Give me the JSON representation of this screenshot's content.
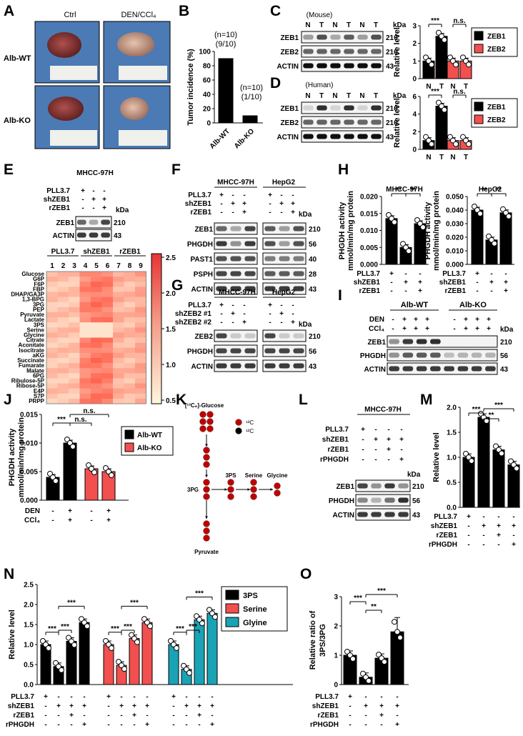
{
  "panels": {
    "A": "A",
    "B": "B",
    "C": "C",
    "D": "D",
    "E": "E",
    "F": "F",
    "G": "G",
    "H": "H",
    "I": "I",
    "J": "J",
    "K": "K",
    "L": "L",
    "M": "M",
    "N": "N",
    "O": "O"
  },
  "common": {
    "kda": "kDa",
    "zeb1": "ZEB1",
    "zeb2": "ZEB2",
    "actin": "ACTIN",
    "phgdh": "PHGDH",
    "past1": "PAST1",
    "psph": "PSPH",
    "m210": "210",
    "m56": "56",
    "m43": "43",
    "m40": "40",
    "m28": "28",
    "pll37": "PLL3.7",
    "shzeb1": "shZEB1",
    "rzeb1": "rZEB1",
    "rphgdh": "rPHGDH",
    "shzeb2_1": "shZEB2 #1",
    "shzeb2_2": "shZEB2 #2",
    "den": "DEN",
    "ccl4": "CCl₄",
    "plus": "+",
    "minus": "-",
    "N": "N",
    "T": "T",
    "relative_level": "Relative level",
    "ns": "n.s.",
    "p3": "***",
    "p2": "**",
    "mhcc": "MHCC-97H",
    "hepg2": "HepG2",
    "alb_wt": "Alb-WT",
    "alb_ko": "Alb-KO"
  },
  "A": {
    "col_ctrl": "Ctrl",
    "col_den": "DEN/CCl₄",
    "row_wt": "Alb-WT",
    "row_ko": "Alb-KO"
  },
  "B": {
    "ylabel": "Tumor incidence (%)",
    "ann_wt_1": "(n=10)",
    "ann_wt_2": "(9/10)",
    "ann_ko_1": "(n=10)",
    "ann_ko_2": "(1/10)"
  },
  "C": {
    "title": "(Mouse)"
  },
  "D": {
    "title": "(Human)"
  },
  "E": {
    "cell": "MHCC-97H",
    "grp_pll": "PLL3.7",
    "grp_sh": "shZEB1",
    "grp_r": "rZEB1",
    "lanes": [
      "1",
      "2",
      "3",
      "4",
      "5",
      "6",
      "7",
      "8",
      "9"
    ],
    "metabolites": [
      "Glucose",
      "G6P",
      "F6P",
      "FBP",
      "DHAP/GA3P",
      "1,3-BPG",
      "3PG",
      "PEP",
      "Pyruvate",
      "Lactate",
      "3PS",
      "Serine",
      "Glycine",
      "Citrate",
      "Aconitate",
      "Isocitrate",
      "aKG",
      "Succinate",
      "Fumarate",
      "Malate",
      "6PG",
      "Ribulose-5P",
      "Ribose-5P",
      "E4P",
      "S7P",
      "PRPP"
    ],
    "scale": [
      "2.5",
      "2.0",
      "1.5",
      "1.0",
      "0.5"
    ]
  },
  "H": {
    "ylabel_1": "PHGDH activity",
    "ylabel_2": "mmol/min/mg protein"
  },
  "J": {
    "ylabel_1": "PHGDH activity",
    "ylabel_2": "mmol/min/mg protein"
  },
  "K": {
    "glucose": "[¹³C₆]-Glucose",
    "c13": "¹³C",
    "c12": "¹²C",
    "g3pg": "3PG",
    "g3ps": "3PS",
    "serine": "Serine",
    "glycine": "Glycine",
    "pyruvate": "Pyruvate"
  },
  "O": {
    "ylabel_1": "Relative ratio of",
    "ylabel_2": "3PS/3PG"
  },
  "colors": {
    "black": "#000000",
    "red": "#f24f4f",
    "teal": "#1aa3b5",
    "dot": "#c00000"
  },
  "chart_data": [
    {
      "panel": "B",
      "type": "bar",
      "categories": [
        "Alb-WT",
        "Alb-KO"
      ],
      "values": [
        90,
        10
      ],
      "ylabel": "Tumor incidence (%)",
      "ylim": [
        0,
        100
      ],
      "yticks": [
        0,
        20,
        40,
        60,
        80,
        100
      ]
    },
    {
      "panel": "C",
      "type": "bar",
      "categories": [
        "N",
        "T"
      ],
      "series": [
        {
          "name": "ZEB1",
          "values": [
            1.0,
            2.4
          ]
        },
        {
          "name": "ZEB2",
          "values": [
            1.0,
            1.0
          ]
        }
      ],
      "ylabel": "Relative level",
      "ylim": [
        0,
        3
      ],
      "yticks": [
        0,
        1,
        2,
        3
      ]
    },
    {
      "panel": "D",
      "type": "bar",
      "categories": [
        "N",
        "T"
      ],
      "series": [
        {
          "name": "ZEB1",
          "values": [
            1.0,
            4.9
          ]
        },
        {
          "name": "ZEB2",
          "values": [
            1.0,
            1.0
          ]
        }
      ],
      "ylabel": "Relative level",
      "ylim": [
        0,
        6
      ],
      "yticks": [
        0,
        2,
        4,
        6
      ]
    },
    {
      "panel": "H",
      "title": "MHCC-97H",
      "type": "bar",
      "values": [
        0.0135,
        0.005,
        0.012
      ],
      "ylim": [
        0,
        0.02
      ],
      "yticks": [
        "0.000",
        "0.005",
        "0.010",
        "0.015",
        "0.020"
      ]
    },
    {
      "panel": "H",
      "title": "HepG2",
      "type": "bar",
      "values": [
        0.04,
        0.018,
        0.038
      ],
      "ylim": [
        0,
        0.05
      ],
      "yticks": [
        "0.000",
        "0.010",
        "0.020",
        "0.030",
        "0.040",
        "0.050"
      ]
    },
    {
      "panel": "J",
      "type": "bar",
      "series": [
        {
          "name": "Alb-WT",
          "values": [
            0.004,
            0.01
          ]
        },
        {
          "name": "Alb-KO",
          "values": [
            0.0055,
            0.005
          ]
        }
      ],
      "ylim": [
        0,
        0.015
      ],
      "yticks": [
        "0.000",
        "0.005",
        "0.010",
        "0.015"
      ]
    },
    {
      "panel": "M",
      "type": "bar",
      "values": [
        1.0,
        1.8,
        1.15,
        0.85
      ],
      "ylabel": "Relative level",
      "ylim": [
        0,
        2
      ],
      "yticks": [
        "0.0",
        "0.5",
        "1.0",
        "1.5",
        "2.0"
      ]
    },
    {
      "panel": "N",
      "type": "bar",
      "series": [
        {
          "name": "3PS",
          "values": [
            1.0,
            0.45,
            1.08,
            1.55
          ]
        },
        {
          "name": "Serine",
          "values": [
            1.0,
            0.48,
            1.15,
            1.55
          ]
        },
        {
          "name": "Glyine",
          "values": [
            1.0,
            0.38,
            1.62,
            1.78
          ]
        }
      ],
      "ylabel": "Relative level",
      "ylim": [
        0,
        2.5
      ],
      "yticks": [
        "0.0",
        "0.5",
        "1.0",
        "1.5",
        "2.0",
        "2.5"
      ]
    },
    {
      "panel": "O",
      "type": "bar",
      "values": [
        1.0,
        0.25,
        0.9,
        1.8
      ],
      "ylabel": "Relative ratio of 3PS/3PG",
      "ylim": [
        0,
        3
      ],
      "yticks": [
        0,
        1,
        2,
        3
      ]
    }
  ]
}
